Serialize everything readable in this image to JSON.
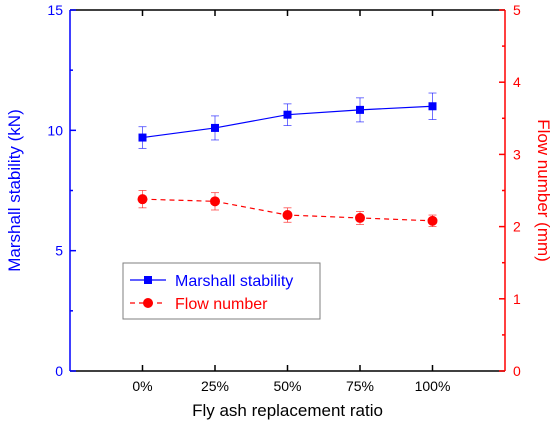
{
  "chart_data": {
    "type": "line",
    "xlabel": "Fly ash replacement ratio",
    "categories": [
      "0%",
      "25%",
      "50%",
      "75%",
      "100%"
    ],
    "y_left": {
      "label": "Marshall stability (kN)",
      "lim": [
        0,
        15
      ],
      "ticks": [
        0,
        5,
        10,
        15
      ],
      "color": "#0000ff"
    },
    "y_right": {
      "label": "Flow number (mm)",
      "lim": [
        0,
        5
      ],
      "ticks": [
        0,
        1,
        2,
        3,
        4,
        5
      ],
      "color": "#ff0000"
    },
    "series": [
      {
        "name": "Marshall stability",
        "axis": "left",
        "marker": "square",
        "line": "solid",
        "color": "#0000ff",
        "values": [
          9.7,
          10.1,
          10.65,
          10.85,
          11.0
        ],
        "errors": [
          0.45,
          0.5,
          0.45,
          0.5,
          0.55
        ]
      },
      {
        "name": "Flow number",
        "axis": "right",
        "marker": "circle",
        "line": "dashed",
        "color": "#ff0000",
        "values": [
          2.38,
          2.35,
          2.16,
          2.12,
          2.08
        ],
        "errors": [
          0.12,
          0.12,
          0.1,
          0.09,
          0.08
        ]
      }
    ],
    "legend": "lower-left",
    "grid": false
  }
}
